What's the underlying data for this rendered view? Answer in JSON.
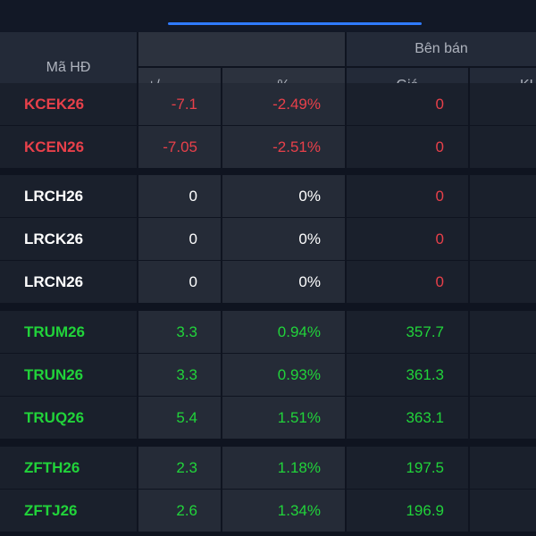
{
  "colors": {
    "up": "#21d33a",
    "down": "#e8404a",
    "flat": "#ffffff"
  },
  "header": {
    "code": "Mã HĐ",
    "sell_group": "Bên bán",
    "change": "+/-",
    "percent": "%",
    "price": "Giá",
    "volume": "KL"
  },
  "rows": [
    {
      "code": "KCEK26",
      "change": "-7.1",
      "percent": "-2.49%",
      "price": "0",
      "trend": "down",
      "price_trend": "down"
    },
    {
      "code": "KCEN26",
      "change": "-7.05",
      "percent": "-2.51%",
      "price": "0",
      "trend": "down",
      "price_trend": "down"
    },
    {
      "code": "LRCH26",
      "change": "0",
      "percent": "0%",
      "price": "0",
      "trend": "flat",
      "price_trend": "down"
    },
    {
      "code": "LRCK26",
      "change": "0",
      "percent": "0%",
      "price": "0",
      "trend": "flat",
      "price_trend": "down"
    },
    {
      "code": "LRCN26",
      "change": "0",
      "percent": "0%",
      "price": "0",
      "trend": "flat",
      "price_trend": "down"
    },
    {
      "code": "TRUM26",
      "change": "3.3",
      "percent": "0.94%",
      "price": "357.7",
      "trend": "up",
      "price_trend": "up"
    },
    {
      "code": "TRUN26",
      "change": "3.3",
      "percent": "0.93%",
      "price": "361.3",
      "trend": "up",
      "price_trend": "up"
    },
    {
      "code": "TRUQ26",
      "change": "5.4",
      "percent": "1.51%",
      "price": "363.1",
      "trend": "up",
      "price_trend": "up"
    },
    {
      "code": "ZFTH26",
      "change": "2.3",
      "percent": "1.18%",
      "price": "197.5",
      "trend": "up",
      "price_trend": "up"
    },
    {
      "code": "ZFTJ26",
      "change": "2.6",
      "percent": "1.34%",
      "price": "196.9",
      "trend": "up",
      "price_trend": "up"
    }
  ]
}
